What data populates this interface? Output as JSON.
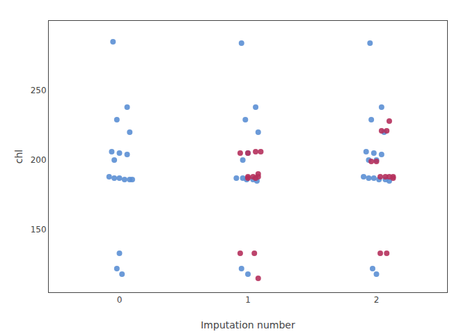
{
  "chart_data": {
    "type": "scatter",
    "xlabel": "Imputation number",
    "ylabel": "chl",
    "xlim": [
      -0.55,
      2.55
    ],
    "xticks": [
      0,
      1,
      2
    ],
    "ylim": [
      105,
      300
    ],
    "yticks": [
      150,
      200,
      250
    ],
    "grid": false,
    "marker": "circle",
    "series": [
      {
        "color": "#5b8fd4",
        "x": [
          -0.05,
          0.06,
          -0.02,
          0.08,
          -0.06,
          0.0,
          0.06,
          -0.04,
          -0.08,
          -0.04,
          0.0,
          0.04,
          0.08,
          0.1,
          0.0,
          -0.02,
          0.02,
          0.95,
          1.06,
          0.98,
          1.08,
          1.0,
          0.96,
          0.91,
          0.96,
          0.99,
          1.04,
          1.07,
          0.95,
          1.0,
          1.95,
          2.04,
          1.96,
          2.06,
          1.92,
          1.98,
          2.04,
          1.94,
          2.0,
          1.9,
          1.94,
          1.98,
          2.02,
          2.07,
          2.1,
          1.97,
          2.0
        ],
        "values": [
          285,
          238,
          229,
          220,
          206,
          205,
          204,
          200,
          188,
          187,
          187,
          186,
          186,
          186,
          133,
          122,
          118,
          284,
          238,
          229,
          220,
          205,
          200,
          187,
          187,
          186,
          186,
          185,
          122,
          118,
          284,
          238,
          229,
          220,
          206,
          205,
          204,
          200,
          200,
          188,
          187,
          187,
          186,
          186,
          185,
          122,
          118
        ]
      },
      {
        "color": "#b5305c",
        "x": [
          1.06,
          1.1,
          0.94,
          1.0,
          1.08,
          1.0,
          1.04,
          1.08,
          1.0,
          1.06,
          0.94,
          1.05,
          1.08,
          2.1,
          2.04,
          2.08,
          1.96,
          2.0,
          2.03,
          2.07,
          2.1,
          2.13,
          2.13,
          2.03,
          2.08
        ],
        "values": [
          206,
          206,
          205,
          205,
          190,
          188,
          188,
          188,
          187,
          187,
          133,
          133,
          115,
          228,
          221,
          221,
          199,
          199,
          188,
          188,
          188,
          188,
          187,
          133,
          133
        ]
      }
    ]
  }
}
